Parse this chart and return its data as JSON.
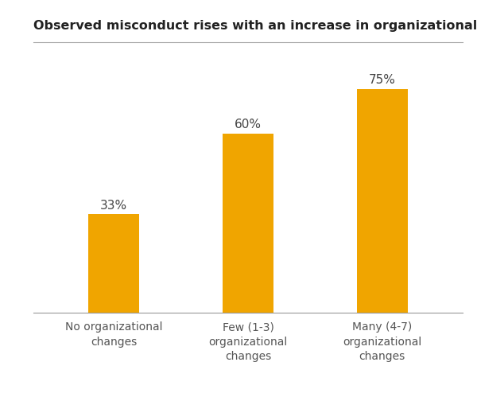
{
  "title": "Observed misconduct rises with an increase in organizational change",
  "categories": [
    "No organizational\nchanges",
    "Few (1-3)\norganizational\nchanges",
    "Many (4-7)\norganizational\nchanges"
  ],
  "values": [
    33,
    60,
    75
  ],
  "labels": [
    "33%",
    "60%",
    "75%"
  ],
  "bar_color": "#F0A500",
  "background_color": "#FFFFFF",
  "title_fontsize": 11.5,
  "label_fontsize": 11,
  "tick_fontsize": 10,
  "ylim": [
    0,
    88
  ],
  "bar_width": 0.38
}
